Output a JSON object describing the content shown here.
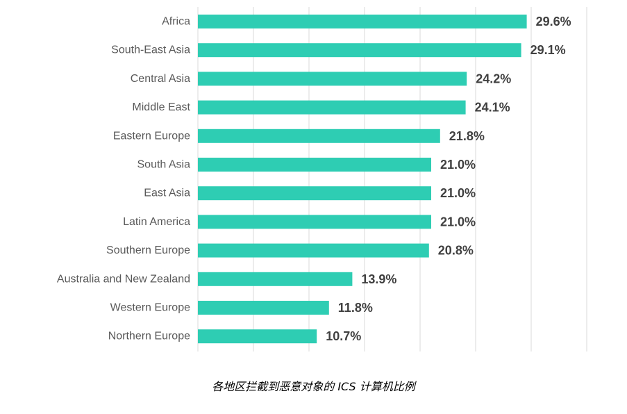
{
  "chart_data": {
    "type": "bar",
    "orientation": "horizontal",
    "categories": [
      "Africa",
      "South-East Asia",
      "Central Asia",
      "Middle East",
      "Eastern Europe",
      "South Asia",
      "East Asia",
      "Latin America",
      "Southern Europe",
      "Australia and New Zealand",
      "Western Europe",
      "Northern Europe"
    ],
    "values": [
      29.6,
      29.1,
      24.2,
      24.1,
      21.8,
      21.0,
      21.0,
      21.0,
      20.8,
      13.9,
      11.8,
      10.7
    ],
    "value_labels": [
      "29.6%",
      "29.1%",
      "24.2%",
      "24.1%",
      "21.8%",
      "21.0%",
      "21.0%",
      "21.0%",
      "20.8%",
      "13.9%",
      "11.8%",
      "10.7%"
    ],
    "xlim": [
      0,
      35
    ],
    "grid": "vertical",
    "bar_color": "#2ecdb3",
    "caption": "各地区拦截到恶意对象的 ICS 计算机比例"
  }
}
